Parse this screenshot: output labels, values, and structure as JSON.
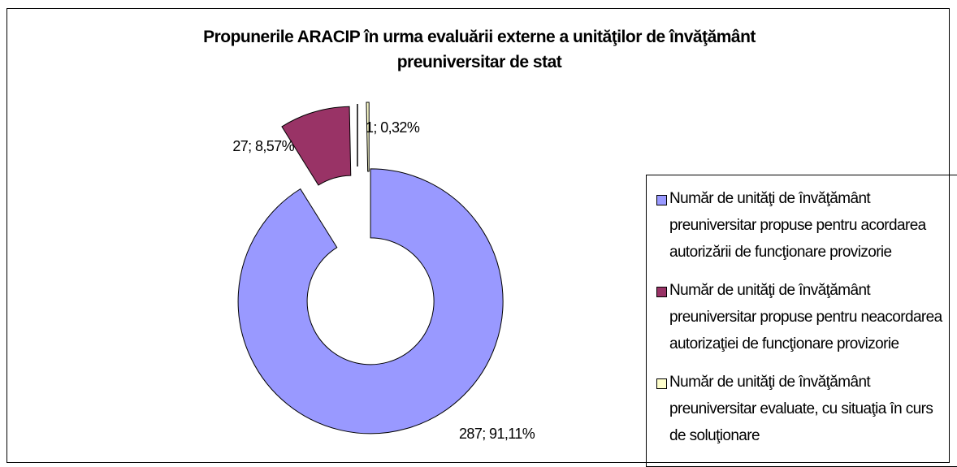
{
  "chart_data": {
    "type": "donut",
    "title": "Propunerile ARACIP în urma evaluării externe a unităţilor de învăţământ preuniversitar de stat",
    "categories": [
      "Număr de unităţi de învăţământ preuniversitar propuse pentru acordarea autorizării de funcţionare provizorie",
      "Număr de unităţi de învăţământ preuniversitar propuse pentru neacordarea autorizaţiei de funcţionare provizorie",
      "Număr de unităţi de învăţământ preuniversitar evaluate, cu situaţia în curs de soluţionare"
    ],
    "values": [
      287,
      27,
      1
    ],
    "value_labels": [
      "287; 91,11%",
      "27; 8,57%",
      "1; 0,32%"
    ],
    "colors": [
      "#9999ff",
      "#993366",
      "#ffffcc"
    ],
    "legend": "right"
  }
}
